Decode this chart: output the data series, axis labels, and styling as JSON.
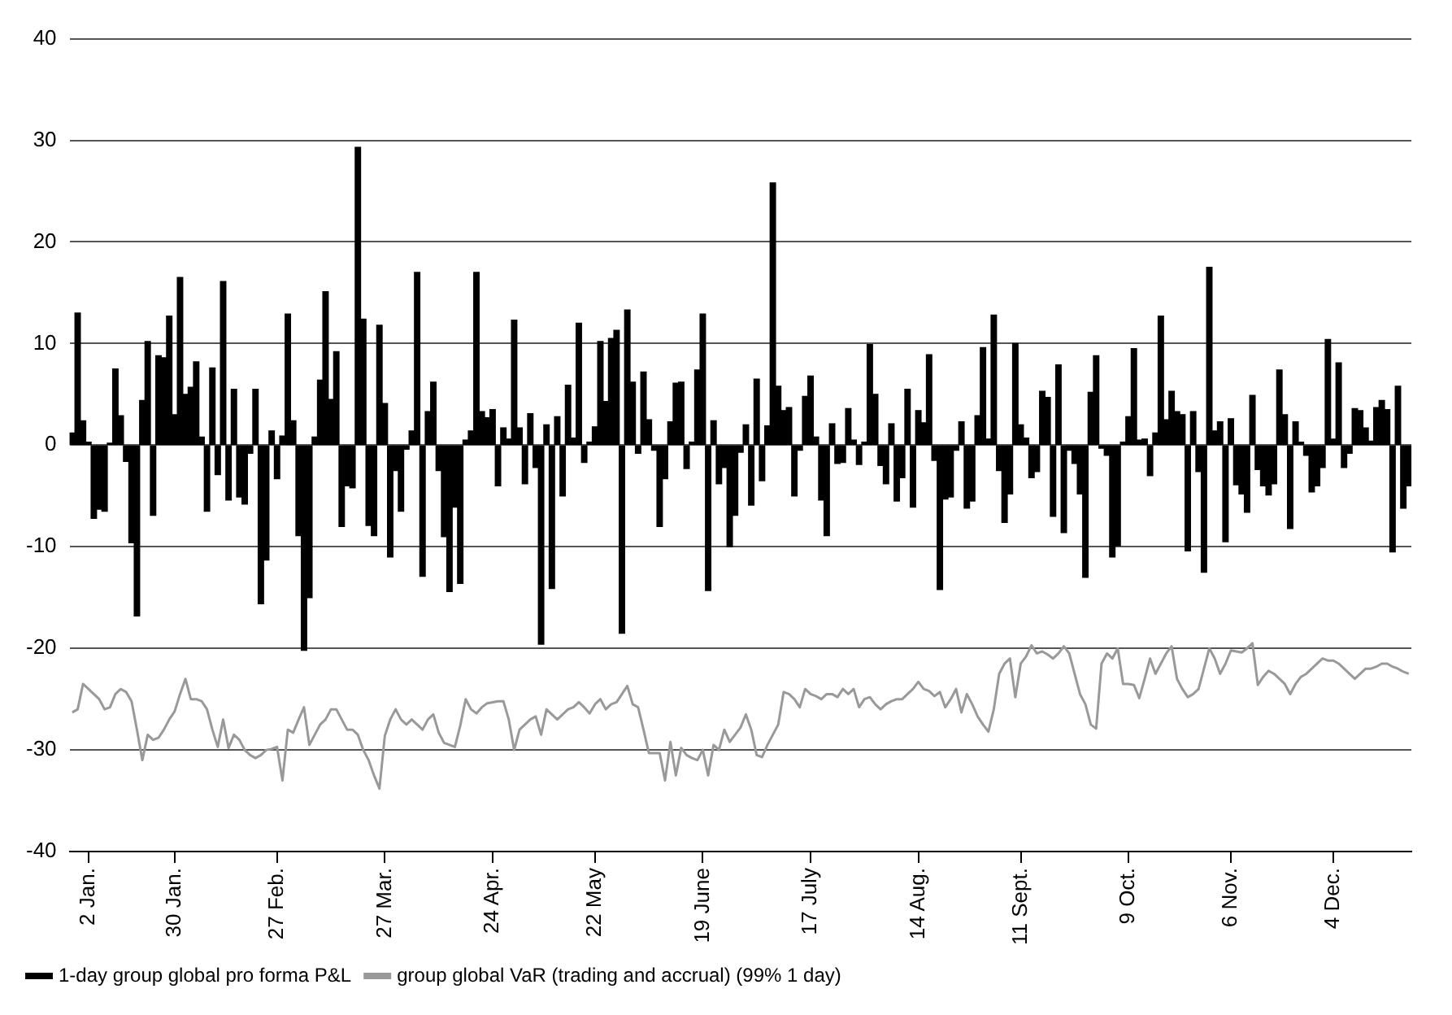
{
  "chart_data": {
    "type": "bar",
    "categories": [
      null,
      null,
      null,
      "2 Jan.",
      null,
      null,
      null,
      null,
      null,
      null,
      null,
      null,
      null,
      null,
      null,
      null,
      null,
      null,
      null,
      "30 Jan.",
      null,
      null,
      null,
      null,
      null,
      null,
      null,
      null,
      null,
      null,
      null,
      null,
      null,
      null,
      null,
      null,
      null,
      null,
      "27 Feb.",
      null,
      null,
      null,
      null,
      null,
      null,
      null,
      null,
      null,
      null,
      null,
      null,
      null,
      null,
      null,
      null,
      null,
      null,
      null,
      "27 Mar.",
      null,
      null,
      null,
      null,
      null,
      null,
      null,
      null,
      null,
      null,
      null,
      null,
      null,
      null,
      null,
      null,
      null,
      null,
      null,
      "24 Apr.",
      null,
      null,
      null,
      null,
      null,
      null,
      null,
      null,
      null,
      null,
      null,
      null,
      null,
      null,
      null,
      null,
      null,
      null,
      "22 May",
      null,
      null,
      null,
      null,
      null,
      null,
      null,
      null,
      null,
      null,
      null,
      null,
      null,
      null,
      null,
      null,
      null,
      null,
      null,
      "19 June",
      null,
      null,
      null,
      null,
      null,
      null,
      null,
      null,
      null,
      null,
      null,
      null,
      null,
      null,
      null,
      null,
      null,
      null,
      null,
      "17 July",
      null,
      null,
      null,
      null,
      null,
      null,
      null,
      null,
      null,
      null,
      null,
      null,
      null,
      null,
      null,
      null,
      null,
      null,
      null,
      "14 Aug.",
      null,
      null,
      null,
      null,
      null,
      null,
      null,
      null,
      null,
      null,
      null,
      null,
      null,
      null,
      null,
      null,
      null,
      null,
      "11 Sept.",
      null,
      null,
      null,
      null,
      null,
      null,
      null,
      null,
      null,
      null,
      null,
      null,
      null,
      null,
      null,
      null,
      null,
      null,
      null,
      "9 Oct.",
      null,
      null,
      null,
      null,
      null,
      null,
      null,
      null,
      null,
      null,
      null,
      null,
      null,
      null,
      null,
      null,
      null,
      null,
      "6 Nov.",
      null,
      null,
      null,
      null,
      null,
      null,
      null,
      null,
      null,
      null,
      null,
      null,
      null,
      null,
      null,
      null,
      null,
      null,
      "4 Dec.",
      null,
      null,
      null,
      null,
      null,
      null,
      null,
      null,
      null,
      null,
      null,
      null,
      null,
      null
    ],
    "series": [
      {
        "name": "1-day group global pro forma P&L",
        "color": "#000000",
        "values": [
          1.2,
          13,
          2.4,
          0.3,
          -7.2,
          -6.3,
          -6.5,
          0.2,
          7.5,
          2.9,
          -1.6,
          -9.6,
          -16.8,
          4.4,
          10.2,
          -6.9,
          8.8,
          8.6,
          12.7,
          3,
          16.5,
          5,
          5.7,
          8.2,
          0.8,
          -6.5,
          7.6,
          -2.9,
          16.1,
          -5.4,
          5.5,
          -5.1,
          -5.8,
          -0.8,
          5.5,
          -15.6,
          -11.3,
          1.4,
          -3.3,
          0.9,
          12.9,
          2.4,
          -8.9,
          -20.2,
          -15,
          0.8,
          6.4,
          15.1,
          4.5,
          9.2,
          -8,
          -4,
          -4.2,
          29.3,
          12.4,
          -7.9,
          -8.9,
          11.8,
          4.1,
          -11,
          -2.5,
          -6.5,
          -0.4,
          1.4,
          17,
          -12.9,
          3.3,
          6.2,
          -2.5,
          -9,
          -14.4,
          -6.1,
          -13.6,
          0.5,
          1.4,
          17,
          3.3,
          2.7,
          3.5,
          -4,
          1.7,
          0.6,
          12.3,
          1.7,
          -3.8,
          3.1,
          -2.2,
          -19.6,
          2,
          -14.1,
          2.8,
          -5,
          5.9,
          0.7,
          12,
          -1.7,
          0.3,
          1.8,
          10.2,
          4.3,
          10.5,
          11.3,
          -18.5,
          13.3,
          6.2,
          -0.8,
          7.2,
          2.5,
          -0.5,
          -8,
          -3.3,
          2.3,
          6.1,
          6.2,
          -2.3,
          0.3,
          7.4,
          12.9,
          -14.3,
          2.4,
          -3.8,
          -2.2,
          -10,
          -6.9,
          -0.7,
          2,
          -5.9,
          6.5,
          -3.5,
          1.9,
          25.8,
          5.8,
          3.4,
          3.7,
          -5,
          -0.5,
          4.8,
          6.8,
          0.8,
          -5.4,
          -8.9,
          2.1,
          -1.8,
          -1.7,
          3.6,
          0.5,
          -1.9,
          0.3,
          9.9,
          5,
          -2,
          -3.8,
          2.1,
          -5.5,
          -3.2,
          5.5,
          -6.1,
          3.4,
          2.2,
          8.9,
          -1.5,
          -14.2,
          -5.3,
          -5.1,
          -0.5,
          2.3,
          -6.2,
          -5.5,
          2.9,
          9.6,
          0.6,
          12.8,
          -2.5,
          -7.6,
          -4.8,
          10,
          2,
          0.7,
          -3.2,
          -2.6,
          5.3,
          4.7,
          -7,
          7.9,
          -8.6,
          -0.5,
          -1.8,
          -4.8,
          -13,
          5.2,
          8.8,
          -0.3,
          -1,
          -11,
          -9.9,
          0.3,
          2.8,
          9.5,
          0.5,
          0.6,
          -3,
          1.2,
          12.7,
          2.5,
          5.3,
          3.3,
          3,
          -10.4,
          3.3,
          -2.6,
          -12.5,
          17.5,
          1.4,
          2.3,
          -9.5,
          2.6,
          -3.9,
          -4.8,
          -6.6,
          4.9,
          -2.4,
          -4,
          -4.9,
          -3.8,
          7.4,
          3,
          -8.2,
          2.3,
          0.3,
          -1,
          -4.6,
          -4,
          -2.2,
          10.4,
          0.6,
          8.1,
          -2.2,
          -0.8,
          3.6,
          3.4,
          1.7,
          0.4,
          3.7,
          4.4,
          3.5,
          -10.5,
          5.8,
          -6.2,
          -4
        ]
      },
      {
        "name": "group global VaR (trading and accrual) (99% 1 day)",
        "type": "line",
        "color": "#999999",
        "values": [
          -26.3,
          -26,
          -23.5,
          -24,
          -24.5,
          -25,
          -26,
          -25.8,
          -24.5,
          -24,
          -24.3,
          -25.2,
          -28,
          -31,
          -28.5,
          -29,
          -28.8,
          -28,
          -27,
          -26.2,
          -24.5,
          -23,
          -25,
          -25,
          -25.2,
          -26,
          -28,
          -29.7,
          -27,
          -29.8,
          -28.5,
          -29,
          -30,
          -30.5,
          -30.8,
          -30.5,
          -30,
          -29.9,
          -29.7,
          -33,
          -28,
          -28.3,
          -27,
          -25.8,
          -29.5,
          -28.5,
          -27.5,
          -27,
          -26,
          -26,
          -27,
          -28,
          -28,
          -28.5,
          -30,
          -31,
          -32.5,
          -33.8,
          -28.6,
          -27,
          -26,
          -27,
          -27.5,
          -27,
          -27.5,
          -28,
          -27,
          -26.5,
          -28.3,
          -29.3,
          -29.5,
          -29.7,
          -27.6,
          -25,
          -26,
          -26.4,
          -25.8,
          -25.4,
          -25.3,
          -25.2,
          -25.2,
          -27,
          -30,
          -28,
          -27.5,
          -27,
          -26.7,
          -28.5,
          -26,
          -26.5,
          -27,
          -26.5,
          -26,
          -25.8,
          -25.3,
          -25.8,
          -26.4,
          -25.5,
          -25,
          -26,
          -25.5,
          -25.3,
          -24.5,
          -23.7,
          -25.5,
          -25.8,
          -28,
          -30.3,
          -30.3,
          -30.3,
          -33,
          -29.2,
          -32.5,
          -29.8,
          -30.5,
          -30.8,
          -31,
          -30,
          -32.5,
          -29.5,
          -30,
          -28,
          -29.2,
          -28.5,
          -27.8,
          -26.5,
          -28,
          -30.5,
          -30.7,
          -29.5,
          -28.5,
          -27.5,
          -24.3,
          -24.5,
          -25,
          -25.8,
          -24,
          -24.5,
          -24.7,
          -25,
          -24.5,
          -24.5,
          -24.8,
          -24,
          -24.5,
          -24,
          -25.8,
          -25,
          -24.8,
          -25.5,
          -26,
          -25.5,
          -25.2,
          -25,
          -25,
          -24.5,
          -24,
          -23.3,
          -24,
          -24.2,
          -24.7,
          -24.3,
          -25.8,
          -25,
          -24,
          -26.3,
          -24.5,
          -25.5,
          -26.7,
          -27.5,
          -28.2,
          -26,
          -22.5,
          -21.5,
          -21,
          -24.8,
          -21.5,
          -20.8,
          -19.7,
          -20.5,
          -20.3,
          -20.6,
          -21,
          -20.5,
          -19.8,
          -20.5,
          -22.5,
          -24.5,
          -25.5,
          -27.5,
          -27.9,
          -21.5,
          -20.5,
          -21,
          -20,
          -23.5,
          -23.5,
          -23.6,
          -24.9,
          -23,
          -21,
          -22.5,
          -21.5,
          -20.5,
          -19.8,
          -23,
          -24,
          -24.8,
          -24.5,
          -24,
          -22,
          -20,
          -21,
          -22.5,
          -21.5,
          -20.2,
          -20.3,
          -20.4,
          -20,
          -19.5,
          -23.6,
          -22.8,
          -22.2,
          -22.5,
          -23,
          -23.5,
          -24.5,
          -23.5,
          -22.8,
          -22.5,
          -22,
          -21.5,
          -21,
          -21.2,
          -21.2,
          -21.5,
          -22,
          -22.5,
          -23,
          -22.5,
          -22,
          -22,
          -21.8,
          -21.5,
          -21.5,
          -21.8,
          -22,
          -22.3,
          -22.5
        ]
      }
    ],
    "ylim": [
      -40,
      40
    ],
    "yticks": [
      -40,
      -30,
      -20,
      -10,
      0,
      10,
      20,
      30,
      40
    ],
    "grid": "y",
    "legend": "bottom left",
    "marker": "none",
    "line_style": "solid"
  }
}
